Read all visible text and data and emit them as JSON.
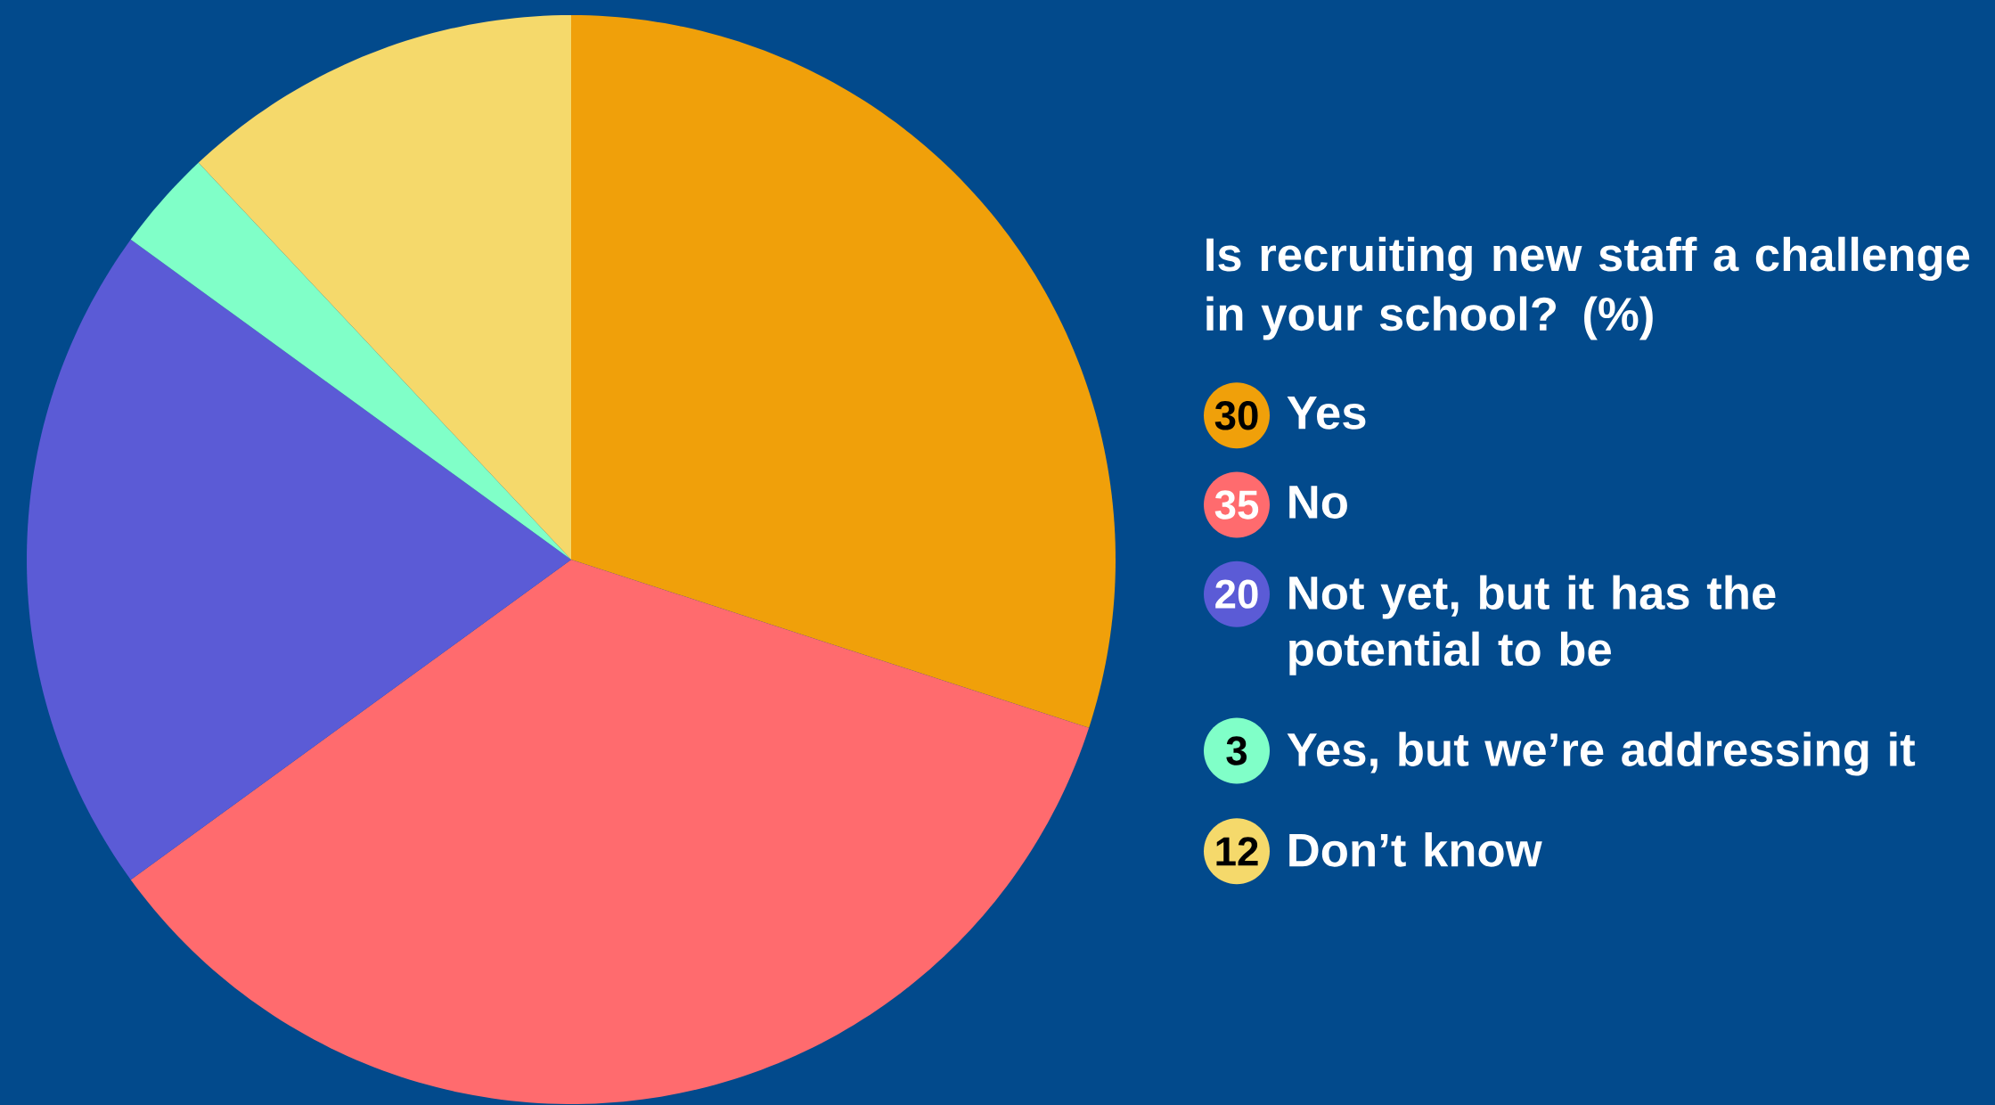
{
  "chart_data": {
    "type": "pie",
    "title": "Is recruiting new staff a challenge in your school? (%)",
    "categories": [
      "Yes",
      "No",
      "Not yet, but it has the potential to be",
      "Yes, but we’re addressing it",
      "Don’t know"
    ],
    "values": [
      30,
      35,
      20,
      3,
      12
    ],
    "colors": [
      "#f0a00a",
      "#ff6b6e",
      "#5b5bd6",
      "#80ffc8",
      "#f5d96b"
    ],
    "data_labels": true,
    "legend": "right"
  }
}
